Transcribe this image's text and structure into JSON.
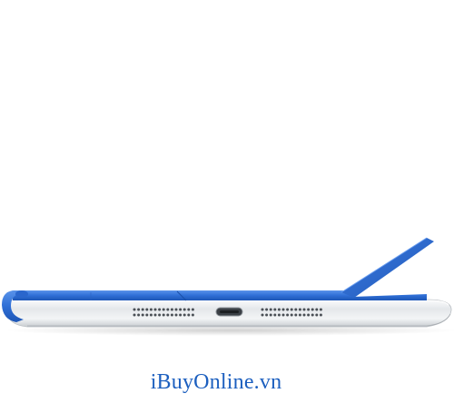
{
  "image": {
    "subject": "tablet-with-smart-cover",
    "cover_color": "#2f6fd6",
    "body_color": "#e9ecef",
    "background": "#ffffff"
  },
  "watermark": {
    "text": "iBuyOnline.vn",
    "color": "#1c5fbf"
  }
}
